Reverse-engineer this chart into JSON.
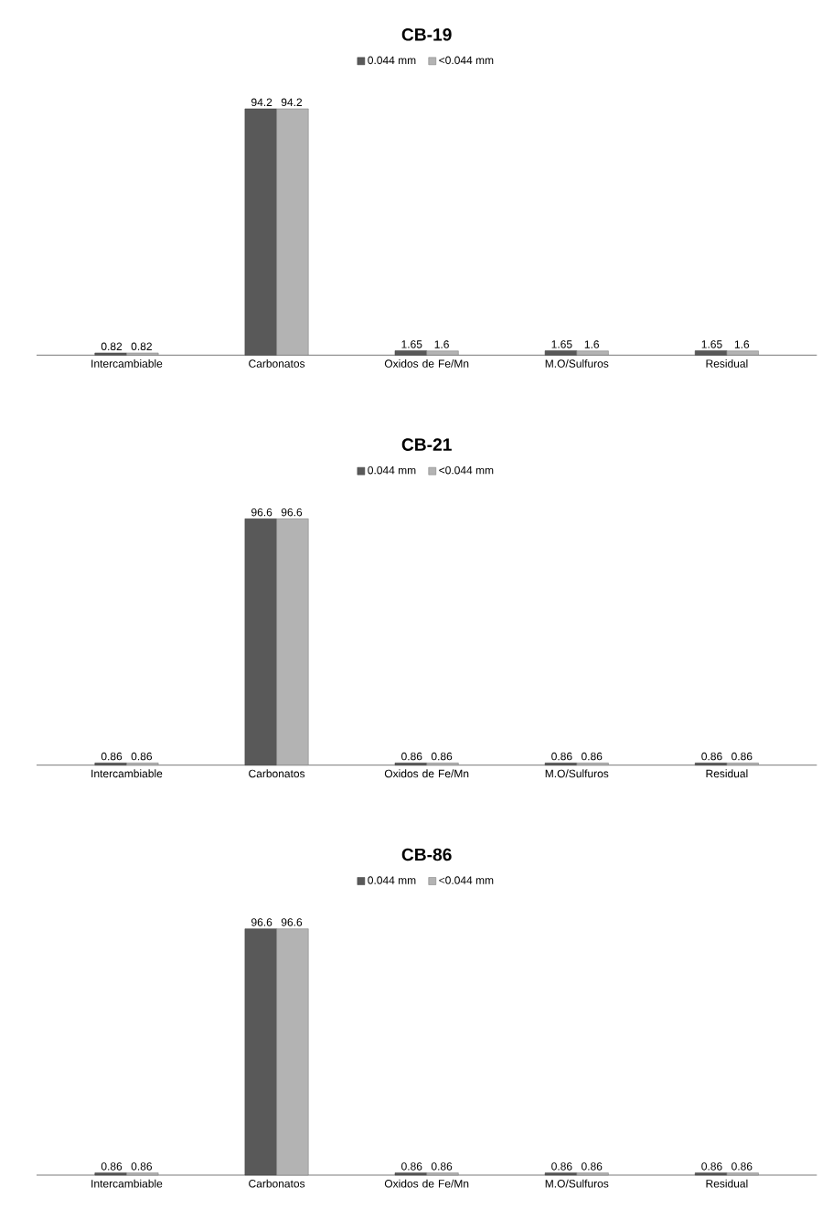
{
  "chart_data": [
    {
      "type": "bar",
      "title": "CB-19",
      "categories": [
        "Intercambiable",
        "Carbonatos",
        "Oxidos de Fe/Mn",
        "M.O/Sulfuros",
        "Residual"
      ],
      "series": [
        {
          "name": "0.044 mm",
          "color": "#595959",
          "values": [
            0.82,
            94.2,
            1.65,
            1.65,
            1.65
          ]
        },
        {
          "name": "<0.044 mm",
          "color": "#b3b3b3",
          "values": [
            0.82,
            94.2,
            1.6,
            1.6,
            1.6
          ]
        }
      ],
      "data_labels": true,
      "legend": "top"
    },
    {
      "type": "bar",
      "title": "CB-21",
      "categories": [
        "Intercambiable",
        "Carbonatos",
        "Oxidos de Fe/Mn",
        "M.O/Sulfuros",
        "Residual"
      ],
      "series": [
        {
          "name": "0.044 mm",
          "color": "#595959",
          "values": [
            0.86,
            96.6,
            0.86,
            0.86,
            0.86
          ]
        },
        {
          "name": "<0.044 mm",
          "color": "#b3b3b3",
          "values": [
            0.86,
            96.6,
            0.86,
            0.86,
            0.86
          ]
        }
      ],
      "data_labels": true,
      "legend": "top"
    },
    {
      "type": "bar",
      "title": "CB-86",
      "categories": [
        "Intercambiable",
        "Carbonatos",
        "Oxidos de Fe/Mn",
        "M.O/Sulfuros",
        "Residual"
      ],
      "series": [
        {
          "name": "0.044 mm",
          "color": "#595959",
          "values": [
            0.86,
            96.6,
            0.86,
            0.86,
            0.86
          ]
        },
        {
          "name": "<0.044 mm",
          "color": "#b3b3b3",
          "values": [
            0.86,
            96.6,
            0.86,
            0.86,
            0.86
          ]
        }
      ],
      "data_labels": true,
      "legend": "top"
    }
  ]
}
